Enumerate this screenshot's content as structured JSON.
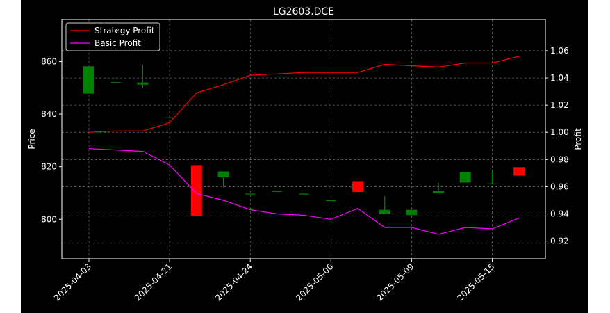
{
  "colors": {
    "figure_bg": "#000000",
    "page_bg": "#ffffff",
    "axes_border": "#ffffff",
    "grid": "#8a8a8a",
    "text": "#ffffff",
    "up": "#008000",
    "down": "#ff0000",
    "strategy_line": "#ff0000",
    "basic_line": "#ff00ff"
  },
  "chart_data": {
    "type": "candlestick+line",
    "title": "LG2603.DCE",
    "ylabel_left": "Price",
    "ylabel_right": "Profit",
    "xlabel": "",
    "grid": true,
    "legend_position": "top-left",
    "ylim_left": [
      785,
      876
    ],
    "ylim_right": [
      0.907,
      1.083
    ],
    "yticks_left": [
      800,
      820,
      840,
      860
    ],
    "yticks_right": [
      0.92,
      0.94,
      0.96,
      0.98,
      1.0,
      1.02,
      1.04,
      1.06
    ],
    "xtick_labels": [
      "2025-04-03",
      "2025-04-21",
      "2025-04-24",
      "2025-05-06",
      "2025-05-09",
      "2025-05-15"
    ],
    "xtick_indices": [
      0,
      3,
      6,
      9,
      12,
      15
    ],
    "candles": [
      {
        "i": 0,
        "open": 847.8,
        "high": 858.2,
        "low": 847.8,
        "close": 858.2
      },
      {
        "i": 1,
        "open": 852.0,
        "high": 852.0,
        "low": 852.0,
        "close": 852.0
      },
      {
        "i": 2,
        "open": 851.2,
        "high": 858.9,
        "low": 849.8,
        "close": 852.0
      },
      {
        "i": 3,
        "open": 838.6,
        "high": 838.6,
        "low": 838.6,
        "close": 838.6
      },
      {
        "i": 4,
        "open": 820.6,
        "high": 820.6,
        "low": 801.4,
        "close": 801.4
      },
      {
        "i": 5,
        "open": 816.0,
        "high": 818.2,
        "low": 812.1,
        "close": 818.2
      },
      {
        "i": 6,
        "open": 809.6,
        "high": 809.6,
        "low": 809.6,
        "close": 809.6
      },
      {
        "i": 7,
        "open": 810.6,
        "high": 810.6,
        "low": 810.6,
        "close": 810.6
      },
      {
        "i": 8,
        "open": 809.6,
        "high": 809.6,
        "low": 809.6,
        "close": 809.6
      },
      {
        "i": 9,
        "open": 807.1,
        "high": 807.1,
        "low": 807.1,
        "close": 807.1
      },
      {
        "i": 10,
        "open": 814.5,
        "high": 814.5,
        "low": 810.4,
        "close": 810.4
      },
      {
        "i": 11,
        "open": 802.1,
        "high": 808.8,
        "low": 802.1,
        "close": 803.6
      },
      {
        "i": 12,
        "open": 801.6,
        "high": 803.6,
        "low": 801.6,
        "close": 803.6
      },
      {
        "i": 13,
        "open": 809.9,
        "high": 813.9,
        "low": 809.9,
        "close": 810.9
      },
      {
        "i": 14,
        "open": 814.0,
        "high": 817.8,
        "low": 814.0,
        "close": 817.8
      },
      {
        "i": 15,
        "open": 813.5,
        "high": 818.1,
        "low": 813.5,
        "close": 813.5
      },
      {
        "i": 16,
        "open": 819.8,
        "high": 819.8,
        "low": 816.6,
        "close": 816.6
      }
    ],
    "series": [
      {
        "name": "Strategy Profit",
        "color": "#ff0000",
        "x": [
          0,
          1,
          2,
          3,
          4,
          5,
          6,
          7,
          8,
          9,
          10,
          11,
          12,
          13,
          14,
          15,
          16
        ],
        "values": [
          1.0,
          1.001,
          1.001,
          1.007,
          1.029,
          1.035,
          1.042,
          1.043,
          1.044,
          1.044,
          1.044,
          1.05,
          1.049,
          1.048,
          1.051,
          1.051,
          1.056
        ]
      },
      {
        "name": "Basic Profit",
        "color": "#ff00ff",
        "x": [
          0,
          1,
          2,
          3,
          4,
          5,
          6,
          7,
          8,
          9,
          10,
          11,
          12,
          13,
          14,
          15,
          16
        ],
        "values": [
          0.988,
          0.987,
          0.986,
          0.976,
          0.955,
          0.95,
          0.943,
          0.94,
          0.939,
          0.936,
          0.944,
          0.93,
          0.93,
          0.925,
          0.93,
          0.929,
          0.937
        ]
      }
    ]
  }
}
